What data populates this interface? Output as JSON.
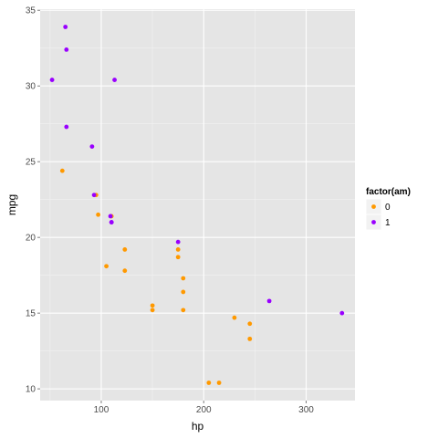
{
  "chart_data": {
    "type": "scatter",
    "xlabel": "hp",
    "ylabel": "mpg",
    "xlim": [
      40.35,
      347.65
    ],
    "ylim": [
      9.225,
      35.075
    ],
    "x_ticks": [
      100,
      200,
      300
    ],
    "y_ticks": [
      10,
      15,
      20,
      25,
      30,
      35
    ],
    "grid": true,
    "legend_placement": "right",
    "legend_title": "factor(am)",
    "series": [
      {
        "name": "0",
        "color": "#FF9900",
        "points": [
          {
            "x": 110,
            "y": 21.4
          },
          {
            "x": 175,
            "y": 18.7
          },
          {
            "x": 105,
            "y": 18.1
          },
          {
            "x": 245,
            "y": 14.3
          },
          {
            "x": 62,
            "y": 24.4
          },
          {
            "x": 95,
            "y": 22.8
          },
          {
            "x": 123,
            "y": 19.2
          },
          {
            "x": 123,
            "y": 17.8
          },
          {
            "x": 180,
            "y": 16.4
          },
          {
            "x": 180,
            "y": 17.3
          },
          {
            "x": 180,
            "y": 15.2
          },
          {
            "x": 205,
            "y": 10.4
          },
          {
            "x": 215,
            "y": 10.4
          },
          {
            "x": 230,
            "y": 14.7
          },
          {
            "x": 97,
            "y": 21.5
          },
          {
            "x": 150,
            "y": 15.5
          },
          {
            "x": 150,
            "y": 15.2
          },
          {
            "x": 245,
            "y": 13.3
          },
          {
            "x": 175,
            "y": 19.2
          }
        ]
      },
      {
        "name": "1",
        "color": "#9900FF",
        "points": [
          {
            "x": 110,
            "y": 21.0
          },
          {
            "x": 110,
            "y": 21.0
          },
          {
            "x": 93,
            "y": 22.8
          },
          {
            "x": 66,
            "y": 32.4
          },
          {
            "x": 52,
            "y": 30.4
          },
          {
            "x": 65,
            "y": 33.9
          },
          {
            "x": 66,
            "y": 27.3
          },
          {
            "x": 91,
            "y": 26.0
          },
          {
            "x": 113,
            "y": 30.4
          },
          {
            "x": 264,
            "y": 15.8
          },
          {
            "x": 175,
            "y": 19.7
          },
          {
            "x": 335,
            "y": 15.0
          },
          {
            "x": 109,
            "y": 21.4
          }
        ]
      }
    ]
  }
}
